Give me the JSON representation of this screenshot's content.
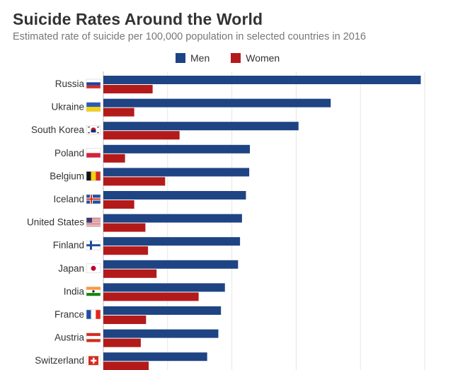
{
  "chart_data": {
    "type": "bar",
    "orientation": "horizontal",
    "title": "Suicide Rates Around the World",
    "subtitle": "Estimated rate of suicide per 100,000 population in selected countries in 2016",
    "xlabel": "",
    "ylabel": "",
    "xlim": [
      0,
      50
    ],
    "grid": true,
    "legend_position": "top",
    "categories": [
      "Russia",
      "Ukraine",
      "South Korea",
      "Poland",
      "Belgium",
      "Iceland",
      "United States",
      "Finland",
      "Japan",
      "India",
      "France",
      "Austria",
      "Switzerland"
    ],
    "flags": [
      "ru",
      "ua",
      "kr",
      "pl",
      "be",
      "is",
      "us",
      "fi",
      "jp",
      "in",
      "fr",
      "at",
      "ch"
    ],
    "series": [
      {
        "name": "Men",
        "color": "#1f4484",
        "values": [
          48.3,
          34.6,
          29.7,
          22.3,
          22.2,
          21.7,
          21.1,
          20.8,
          20.5,
          18.5,
          17.9,
          17.5,
          15.8
        ]
      },
      {
        "name": "Women",
        "color": "#b31b1b",
        "values": [
          7.5,
          4.7,
          11.6,
          3.3,
          9.4,
          4.7,
          6.4,
          6.8,
          8.1,
          14.5,
          6.5,
          5.7,
          6.9
        ]
      }
    ]
  }
}
